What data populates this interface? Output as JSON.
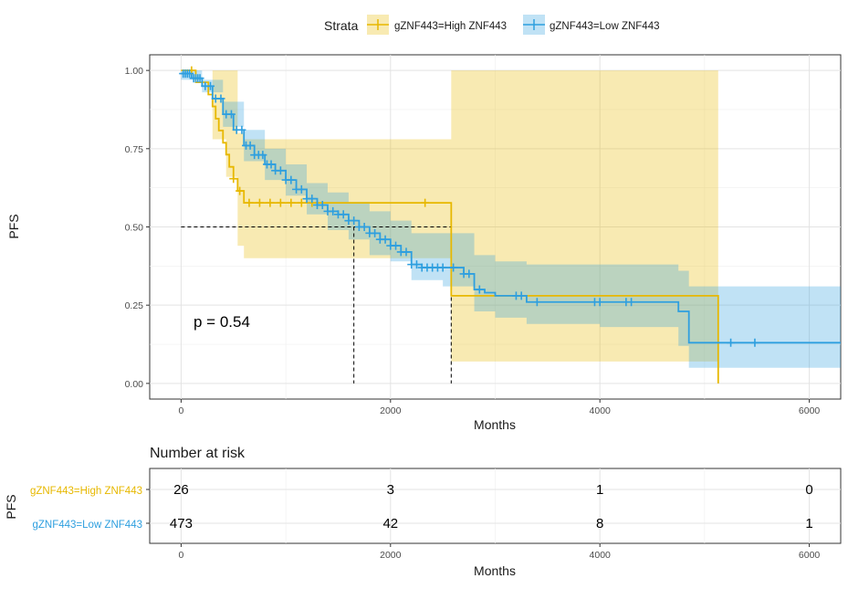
{
  "chart_data": [
    {
      "type": "line",
      "subtype": "kaplan-meier",
      "xlabel": "Months",
      "ylabel": "PFS",
      "xlim": [
        -300,
        6300
      ],
      "ylim": [
        -0.05,
        1.05
      ],
      "xticks": [
        0,
        2000,
        4000,
        6000
      ],
      "yticks": [
        0.0,
        0.25,
        0.5,
        0.75,
        1.0
      ],
      "ytick_labels": [
        "0.00",
        "0.25",
        "0.50",
        "0.75",
        "1.00"
      ],
      "grid": true,
      "legend": {
        "title": "Strata",
        "position": "top",
        "entries": [
          "gZNF443=High ZNF443",
          "gZNF443=Low ZNF443"
        ]
      },
      "annotation": "p = 0.54",
      "median_lines": {
        "y": 0.5,
        "x": [
          1650,
          2580
        ]
      },
      "series": [
        {
          "name": "gZNF443=High ZNF443",
          "color": "#E7B800",
          "steps": [
            [
              0,
              1.0
            ],
            [
              140,
              0.962
            ],
            [
              260,
              0.923
            ],
            [
              300,
              0.885
            ],
            [
              330,
              0.846
            ],
            [
              360,
              0.808
            ],
            [
              400,
              0.769
            ],
            [
              430,
              0.731
            ],
            [
              460,
              0.692
            ],
            [
              500,
              0.654
            ],
            [
              540,
              0.615
            ],
            [
              600,
              0.577
            ],
            [
              2580,
              0.553
            ],
            [
              2580,
              0.28
            ],
            [
              5130,
              0.28
            ],
            [
              5130,
              0.0
            ]
          ],
          "ci": [
            [
              0,
              1.0,
              1.0
            ],
            [
              300,
              1.0,
              0.78
            ],
            [
              430,
              1.0,
              0.66
            ],
            [
              540,
              0.8,
              0.44
            ],
            [
              600,
              0.78,
              0.4
            ],
            [
              2580,
              0.79,
              0.39
            ],
            [
              2580,
              1.0,
              0.07
            ],
            [
              5130,
              1.0,
              0.07
            ]
          ],
          "censor_x": [
            100,
            500,
            560,
            650,
            750,
            850,
            950,
            1050,
            1150,
            1250,
            2330
          ]
        },
        {
          "name": "gZNF443=Low ZNF443",
          "color": "#2E9FDF",
          "steps": [
            [
              0,
              0.99
            ],
            [
              100,
              0.975
            ],
            [
              200,
              0.95
            ],
            [
              300,
              0.91
            ],
            [
              400,
              0.86
            ],
            [
              500,
              0.81
            ],
            [
              600,
              0.76
            ],
            [
              700,
              0.73
            ],
            [
              800,
              0.7
            ],
            [
              900,
              0.68
            ],
            [
              1000,
              0.65
            ],
            [
              1100,
              0.62
            ],
            [
              1200,
              0.59
            ],
            [
              1300,
              0.57
            ],
            [
              1400,
              0.55
            ],
            [
              1500,
              0.54
            ],
            [
              1600,
              0.52
            ],
            [
              1700,
              0.5
            ],
            [
              1800,
              0.48
            ],
            [
              1900,
              0.46
            ],
            [
              2000,
              0.44
            ],
            [
              2100,
              0.42
            ],
            [
              2200,
              0.38
            ],
            [
              2300,
              0.37
            ],
            [
              2500,
              0.37
            ],
            [
              2700,
              0.35
            ],
            [
              2800,
              0.3
            ],
            [
              2900,
              0.29
            ],
            [
              3000,
              0.28
            ],
            [
              3100,
              0.28
            ],
            [
              3300,
              0.26
            ],
            [
              4000,
              0.26
            ],
            [
              4700,
              0.26
            ],
            [
              4750,
              0.23
            ],
            [
              4850,
              0.13
            ],
            [
              6300,
              0.13
            ]
          ],
          "ci": [
            [
              0,
              1.0,
              0.97
            ],
            [
              200,
              0.97,
              0.93
            ],
            [
              400,
              0.9,
              0.82
            ],
            [
              600,
              0.81,
              0.71
            ],
            [
              800,
              0.75,
              0.65
            ],
            [
              1000,
              0.7,
              0.6
            ],
            [
              1200,
              0.64,
              0.54
            ],
            [
              1400,
              0.61,
              0.49
            ],
            [
              1600,
              0.58,
              0.46
            ],
            [
              1800,
              0.55,
              0.41
            ],
            [
              2000,
              0.52,
              0.39
            ],
            [
              2200,
              0.48,
              0.33
            ],
            [
              2500,
              0.48,
              0.31
            ],
            [
              2800,
              0.41,
              0.23
            ],
            [
              3000,
              0.39,
              0.21
            ],
            [
              3300,
              0.38,
              0.19
            ],
            [
              4000,
              0.38,
              0.18
            ],
            [
              4750,
              0.36,
              0.12
            ],
            [
              4850,
              0.31,
              0.05
            ],
            [
              6300,
              0.31,
              0.05
            ]
          ],
          "censor_x": [
            20,
            40,
            60,
            80,
            120,
            140,
            160,
            180,
            230,
            280,
            330,
            380,
            430,
            480,
            530,
            580,
            620,
            660,
            700,
            740,
            780,
            820,
            860,
            900,
            950,
            1000,
            1050,
            1100,
            1150,
            1200,
            1250,
            1300,
            1350,
            1400,
            1450,
            1500,
            1550,
            1600,
            1650,
            1700,
            1750,
            1800,
            1850,
            1900,
            1950,
            2000,
            2050,
            2100,
            2150,
            2200,
            2250,
            2300,
            2350,
            2400,
            2450,
            2500,
            2600,
            2700,
            2750,
            2850,
            3200,
            3250,
            3400,
            3950,
            4000,
            4250,
            4300,
            5250,
            5480
          ]
        }
      ]
    },
    {
      "type": "table",
      "title": "Number at risk",
      "xlabel": "Months",
      "ylabel": "PFS",
      "xticks": [
        0,
        2000,
        4000,
        6000
      ],
      "rows": [
        {
          "name": "gZNF443=High ZNF443",
          "color": "#E7B800",
          "values": [
            "26",
            "3",
            "1",
            "0"
          ]
        },
        {
          "name": "gZNF443=Low ZNF443",
          "color": "#2E9FDF",
          "values": [
            "473",
            "42",
            "8",
            "1"
          ]
        }
      ]
    }
  ]
}
